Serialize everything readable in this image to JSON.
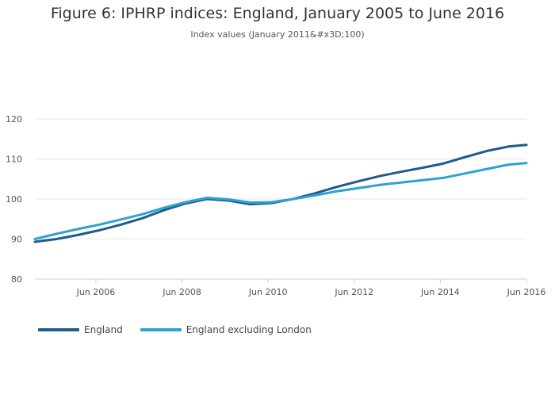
{
  "chart_data": {
    "type": "line",
    "title": "Figure 6: IPHRP indices: England, January 2005 to June 2016",
    "subtitle": "Index values (January 2011&#x3D;100)",
    "xlabel": "",
    "ylabel": "",
    "x_ticks": [
      "Jun 2006",
      "Jun 2008",
      "Jun 2010",
      "Jun 2012",
      "Jun 2014",
      "Jun 2016"
    ],
    "y_ticks": [
      "80",
      "90",
      "100",
      "110",
      "120"
    ],
    "ylim": [
      80,
      120
    ],
    "x_range": [
      "Jan 2005",
      "Jun 2016"
    ],
    "legend_position": "bottom-left",
    "series": [
      {
        "name": "England",
        "color": "#1f5c8b",
        "values": [
          {
            "date": "2005-01",
            "value": 89.3
          },
          {
            "date": "2005-07",
            "value": 90.0
          },
          {
            "date": "2006-01",
            "value": 91.0
          },
          {
            "date": "2006-07",
            "value": 92.2
          },
          {
            "date": "2007-01",
            "value": 93.6
          },
          {
            "date": "2007-07",
            "value": 95.2
          },
          {
            "date": "2008-01",
            "value": 97.2
          },
          {
            "date": "2008-07",
            "value": 98.9
          },
          {
            "date": "2009-01",
            "value": 100.0
          },
          {
            "date": "2009-07",
            "value": 99.6
          },
          {
            "date": "2010-01",
            "value": 98.7
          },
          {
            "date": "2010-07",
            "value": 99.0
          },
          {
            "date": "2011-01",
            "value": 100.0
          },
          {
            "date": "2011-07",
            "value": 101.4
          },
          {
            "date": "2012-01",
            "value": 103.0
          },
          {
            "date": "2012-07",
            "value": 104.4
          },
          {
            "date": "2013-01",
            "value": 105.7
          },
          {
            "date": "2013-07",
            "value": 106.8
          },
          {
            "date": "2014-01",
            "value": 107.8
          },
          {
            "date": "2014-07",
            "value": 108.9
          },
          {
            "date": "2015-01",
            "value": 110.5
          },
          {
            "date": "2015-07",
            "value": 112.0
          },
          {
            "date": "2016-01",
            "value": 113.1
          },
          {
            "date": "2016-06",
            "value": 113.5
          }
        ]
      },
      {
        "name": "England excluding London",
        "color": "#2ea1d2",
        "values": [
          {
            "date": "2005-01",
            "value": 90.0
          },
          {
            "date": "2005-07",
            "value": 91.3
          },
          {
            "date": "2006-01",
            "value": 92.5
          },
          {
            "date": "2006-07",
            "value": 93.6
          },
          {
            "date": "2007-01",
            "value": 94.9
          },
          {
            "date": "2007-07",
            "value": 96.2
          },
          {
            "date": "2008-01",
            "value": 97.8
          },
          {
            "date": "2008-07",
            "value": 99.2
          },
          {
            "date": "2009-01",
            "value": 100.3
          },
          {
            "date": "2009-07",
            "value": 99.9
          },
          {
            "date": "2010-01",
            "value": 99.1
          },
          {
            "date": "2010-07",
            "value": 99.2
          },
          {
            "date": "2011-01",
            "value": 100.0
          },
          {
            "date": "2011-07",
            "value": 100.9
          },
          {
            "date": "2012-01",
            "value": 101.9
          },
          {
            "date": "2012-07",
            "value": 102.7
          },
          {
            "date": "2013-01",
            "value": 103.5
          },
          {
            "date": "2013-07",
            "value": 104.1
          },
          {
            "date": "2014-01",
            "value": 104.7
          },
          {
            "date": "2014-07",
            "value": 105.3
          },
          {
            "date": "2015-01",
            "value": 106.4
          },
          {
            "date": "2015-07",
            "value": 107.5
          },
          {
            "date": "2016-01",
            "value": 108.6
          },
          {
            "date": "2016-06",
            "value": 109.0
          }
        ]
      }
    ]
  }
}
